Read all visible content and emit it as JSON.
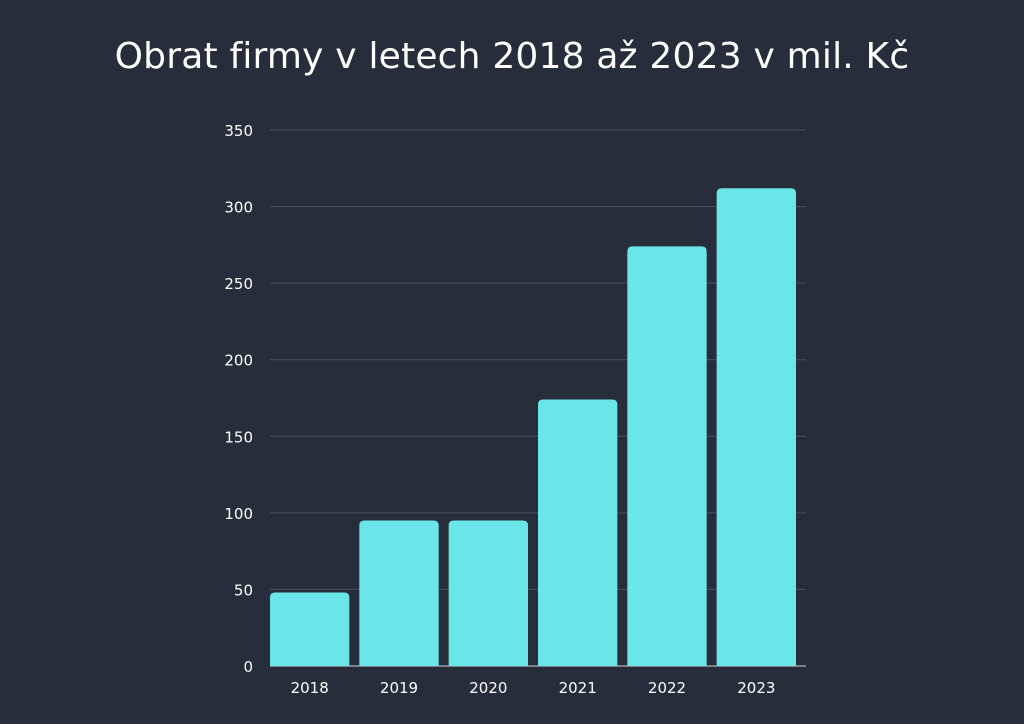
{
  "chart_data": {
    "type": "bar",
    "title": "Obrat firmy v letech 2018 až 2023 v mil. Kč",
    "xlabel": "",
    "ylabel": "",
    "categories": [
      "2018",
      "2019",
      "2020",
      "2021",
      "2022",
      "2023"
    ],
    "values": [
      48,
      95,
      95,
      174,
      274,
      312
    ],
    "ylim": [
      0,
      350
    ],
    "yticks": [
      "0",
      "50",
      "100",
      "150",
      "200",
      "250",
      "300",
      "350"
    ],
    "grid": true,
    "colors": {
      "bar": "#6ae5e8",
      "background": "#282d3c",
      "grid": "#4a4f5e",
      "text": "#ffffff"
    }
  }
}
